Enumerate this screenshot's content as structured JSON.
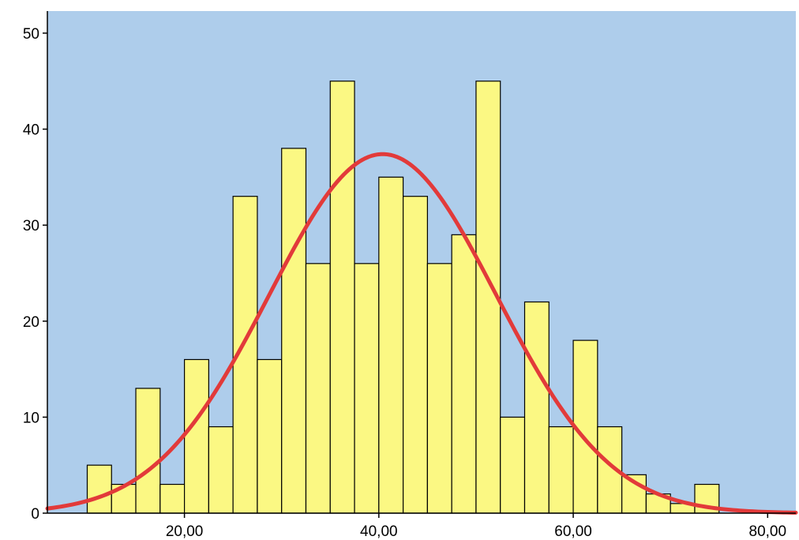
{
  "chart_data": {
    "type": "bar",
    "subtype": "histogram",
    "title": "",
    "xlabel": "",
    "ylabel": "",
    "xlim": [
      5.9,
      82.9
    ],
    "ylim": [
      0,
      52.3
    ],
    "bin_width": 2.5,
    "x_ticks": [
      20,
      40,
      60,
      80
    ],
    "x_tick_labels": [
      "20,00",
      "40,00",
      "60,00",
      "80,00"
    ],
    "y_ticks": [
      0,
      10,
      20,
      30,
      40,
      50
    ],
    "y_tick_labels": [
      "0",
      "10",
      "20",
      "30",
      "40",
      "50"
    ],
    "bins": [
      {
        "x0": 10.0,
        "x1": 12.5,
        "count": 5
      },
      {
        "x0": 12.5,
        "x1": 15.0,
        "count": 3
      },
      {
        "x0": 15.0,
        "x1": 17.5,
        "count": 13
      },
      {
        "x0": 17.5,
        "x1": 20.0,
        "count": 3
      },
      {
        "x0": 20.0,
        "x1": 22.5,
        "count": 16
      },
      {
        "x0": 22.5,
        "x1": 25.0,
        "count": 9
      },
      {
        "x0": 25.0,
        "x1": 27.5,
        "count": 33
      },
      {
        "x0": 27.5,
        "x1": 30.0,
        "count": 16
      },
      {
        "x0": 30.0,
        "x1": 32.5,
        "count": 38
      },
      {
        "x0": 32.5,
        "x1": 35.0,
        "count": 26
      },
      {
        "x0": 35.0,
        "x1": 37.5,
        "count": 45
      },
      {
        "x0": 37.5,
        "x1": 40.0,
        "count": 26
      },
      {
        "x0": 40.0,
        "x1": 42.5,
        "count": 35
      },
      {
        "x0": 42.5,
        "x1": 45.0,
        "count": 33
      },
      {
        "x0": 45.0,
        "x1": 47.5,
        "count": 26
      },
      {
        "x0": 47.5,
        "x1": 50.0,
        "count": 29
      },
      {
        "x0": 50.0,
        "x1": 52.5,
        "count": 45
      },
      {
        "x0": 52.5,
        "x1": 55.0,
        "count": 10
      },
      {
        "x0": 55.0,
        "x1": 57.5,
        "count": 22
      },
      {
        "x0": 57.5,
        "x1": 60.0,
        "count": 9
      },
      {
        "x0": 60.0,
        "x1": 62.5,
        "count": 18
      },
      {
        "x0": 62.5,
        "x1": 65.0,
        "count": 9
      },
      {
        "x0": 65.0,
        "x1": 67.5,
        "count": 4
      },
      {
        "x0": 67.5,
        "x1": 70.0,
        "count": 2
      },
      {
        "x0": 70.0,
        "x1": 72.5,
        "count": 1
      },
      {
        "x0": 72.5,
        "x1": 75.0,
        "count": 3
      }
    ],
    "normal_curve": {
      "mean": 40.4,
      "sd": 11.7,
      "peak": 37.4
    },
    "grid": false,
    "legend": "none",
    "colors": {
      "plot_background": "#aecdeb",
      "bar_fill": "#fbf883",
      "bar_stroke": "#000000",
      "curve": "#e23a3a"
    }
  }
}
